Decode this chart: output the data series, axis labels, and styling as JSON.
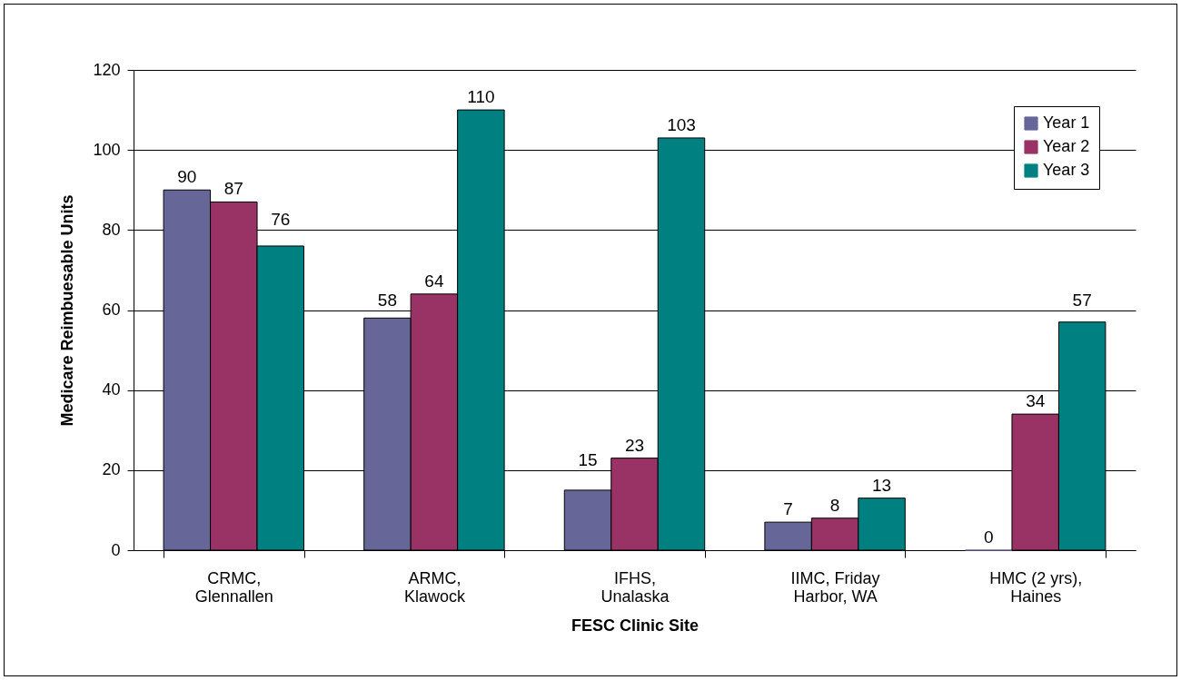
{
  "chart_data": {
    "type": "bar",
    "xlabel": "FESC Clinic Site",
    "ylabel": "Medicare Reimbuesable Units",
    "categories": [
      "CRMC, Glennallen",
      "ARMC, Klawock",
      "IFHS, Unalaska",
      "IIMC, Friday Harbor, WA",
      "HMC (2 yrs), Haines"
    ],
    "series": [
      {
        "name": "Year 1",
        "color": "#666699",
        "values": [
          90,
          58,
          15,
          7,
          0
        ]
      },
      {
        "name": "Year 2",
        "color": "#993366",
        "values": [
          87,
          64,
          23,
          8,
          34
        ]
      },
      {
        "name": "Year 3",
        "color": "#008080",
        "values": [
          76,
          110,
          103,
          13,
          57
        ]
      }
    ],
    "ylim": [
      0,
      120
    ],
    "yticks": [
      0,
      20,
      40,
      60,
      80,
      100,
      120
    ],
    "grid": "y",
    "legend": "top right",
    "data_labels": true
  }
}
